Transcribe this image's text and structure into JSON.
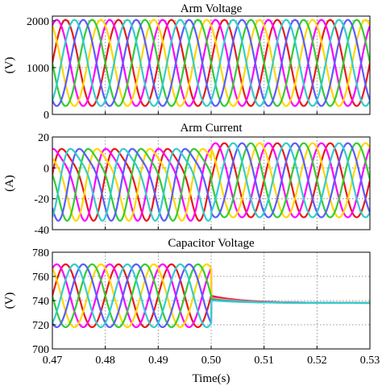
{
  "colors": [
    "#e6191d",
    "#ff00ff",
    "#ffd700",
    "#33cc33",
    "#5b5bff",
    "#33cccc"
  ],
  "chart_data": [
    {
      "type": "line",
      "title": "Arm Voltage",
      "ylabel": "(V)",
      "xlim": [
        0.47,
        0.53
      ],
      "ylim": [
        0,
        2100
      ],
      "yticks": [
        "0",
        "1000",
        "2000"
      ],
      "ytick_values": [
        0,
        1000,
        2000
      ],
      "frequency_hz": 100,
      "series": [
        {
          "color": "#e6191d",
          "phase_deg": 0,
          "before": {
            "offset": 1100,
            "amplitude": 920
          },
          "after": {
            "offset": 1100,
            "amplitude": 920
          }
        },
        {
          "color": "#ff00ff",
          "phase_deg": 60,
          "before": {
            "offset": 1100,
            "amplitude": 920
          },
          "after": {
            "offset": 1100,
            "amplitude": 920
          }
        },
        {
          "color": "#ffd700",
          "phase_deg": 120,
          "before": {
            "offset": 1100,
            "amplitude": 920
          },
          "after": {
            "offset": 1100,
            "amplitude": 920
          }
        },
        {
          "color": "#33cc33",
          "phase_deg": 180,
          "before": {
            "offset": 1100,
            "amplitude": 920
          },
          "after": {
            "offset": 1100,
            "amplitude": 920
          }
        },
        {
          "color": "#5b5bff",
          "phase_deg": 240,
          "before": {
            "offset": 1100,
            "amplitude": 920
          },
          "after": {
            "offset": 1100,
            "amplitude": 920
          }
        },
        {
          "color": "#33cccc",
          "phase_deg": 300,
          "before": {
            "offset": 1100,
            "amplitude": 920
          },
          "after": {
            "offset": 1100,
            "amplitude": 920
          }
        }
      ]
    },
    {
      "type": "line",
      "title": "Arm Current",
      "ylabel": "(A)",
      "xlim": [
        0.47,
        0.53
      ],
      "ylim": [
        -40,
        20
      ],
      "yticks": [
        "20",
        "0",
        "-20",
        "-40"
      ],
      "ytick_values": [
        20,
        0,
        -20,
        -40
      ],
      "frequency_hz": 100,
      "event_x": 0.5,
      "series": [
        {
          "color": "#e6191d",
          "phase_deg": 0,
          "before": {
            "offset": -8,
            "amplitude": 22,
            "harmonic2": 5
          },
          "after": {
            "offset": -8,
            "amplitude": 24,
            "harmonic2": 0
          }
        },
        {
          "color": "#ff00ff",
          "phase_deg": 60,
          "before": {
            "offset": -8,
            "amplitude": 22,
            "harmonic2": 5
          },
          "after": {
            "offset": -8,
            "amplitude": 24,
            "harmonic2": 0
          }
        },
        {
          "color": "#ffd700",
          "phase_deg": 120,
          "before": {
            "offset": -8,
            "amplitude": 22,
            "harmonic2": 5
          },
          "after": {
            "offset": -8,
            "amplitude": 24,
            "harmonic2": 0
          }
        },
        {
          "color": "#33cc33",
          "phase_deg": 180,
          "before": {
            "offset": -8,
            "amplitude": 22,
            "harmonic2": 5
          },
          "after": {
            "offset": -8,
            "amplitude": 24,
            "harmonic2": 0
          }
        },
        {
          "color": "#5b5bff",
          "phase_deg": 240,
          "before": {
            "offset": -8,
            "amplitude": 22,
            "harmonic2": 5
          },
          "after": {
            "offset": -8,
            "amplitude": 24,
            "harmonic2": 0
          }
        },
        {
          "color": "#33cccc",
          "phase_deg": 300,
          "before": {
            "offset": -8,
            "amplitude": 22,
            "harmonic2": 5
          },
          "after": {
            "offset": -8,
            "amplitude": 24,
            "harmonic2": 0
          }
        }
      ]
    },
    {
      "type": "line",
      "title": "Capacitor Voltage",
      "ylabel": "(V)",
      "xlabel": "Time(s)",
      "xlim": [
        0.47,
        0.53
      ],
      "ylim": [
        700,
        780
      ],
      "yticks": [
        "780",
        "760",
        "740",
        "720",
        "700"
      ],
      "ytick_values": [
        780,
        760,
        740,
        720,
        700
      ],
      "xticks": [
        "0.47",
        "0.48",
        "0.49",
        "0.50",
        "0.51",
        "0.52",
        "0.53"
      ],
      "xtick_values": [
        0.47,
        0.48,
        0.49,
        0.5,
        0.51,
        0.52,
        0.53
      ],
      "frequency_hz": 100,
      "event_x": 0.5,
      "settle_value": 738,
      "series": [
        {
          "color": "#e6191d",
          "phase_deg": 0,
          "before": {
            "offset": 744,
            "amplitude": 26
          }
        },
        {
          "color": "#ff00ff",
          "phase_deg": 60,
          "before": {
            "offset": 744,
            "amplitude": 26
          }
        },
        {
          "color": "#ffd700",
          "phase_deg": 120,
          "before": {
            "offset": 744,
            "amplitude": 26
          }
        },
        {
          "color": "#33cc33",
          "phase_deg": 180,
          "before": {
            "offset": 744,
            "amplitude": 26
          }
        },
        {
          "color": "#5b5bff",
          "phase_deg": 240,
          "before": {
            "offset": 744,
            "amplitude": 26
          }
        },
        {
          "color": "#33cccc",
          "phase_deg": 300,
          "before": {
            "offset": 744,
            "amplitude": 26
          }
        }
      ]
    }
  ]
}
